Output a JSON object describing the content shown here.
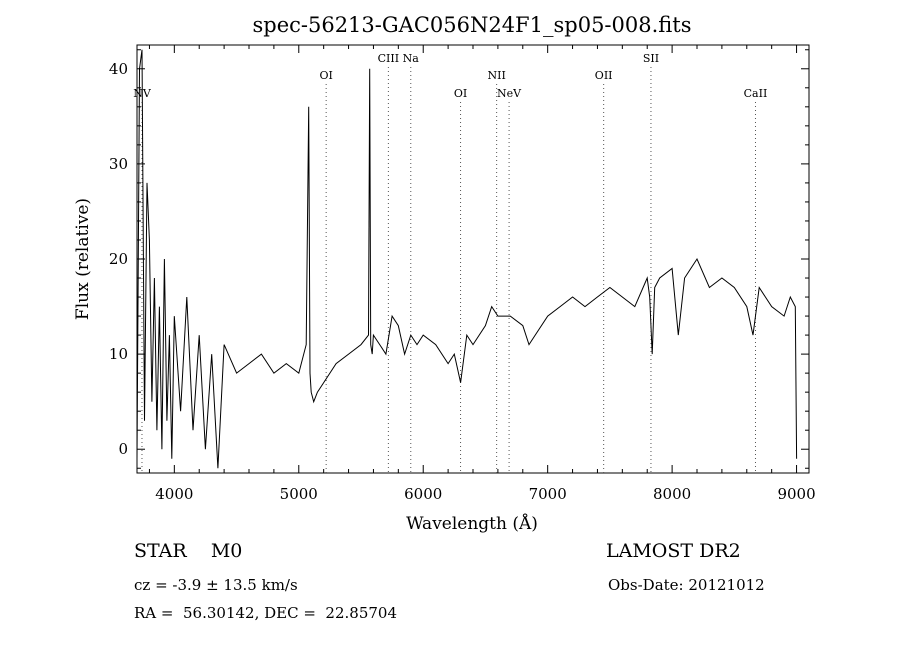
{
  "chart_data": {
    "type": "line",
    "title": "spec-56213-GAC056N24F1_sp05-008.fits",
    "xlabel": "Wavelength (Å)",
    "ylabel": "Flux (relative)",
    "xlim": [
      3700,
      9100
    ],
    "ylim": [
      -2.5,
      42.5
    ],
    "xticks": [
      4000,
      5000,
      6000,
      7000,
      8000,
      9000
    ],
    "yticks": [
      0,
      10,
      20,
      30,
      40
    ],
    "grid": false,
    "series": [
      {
        "x": [
          3700,
          3720,
          3740,
          3760,
          3780,
          3800,
          3820,
          3840,
          3860,
          3880,
          3900,
          3920,
          3940,
          3960,
          3980,
          4000,
          4050,
          4100,
          4150,
          4200,
          4250,
          4300,
          4350,
          4400,
          4500,
          4600,
          4700,
          4800,
          4900,
          5000,
          5060,
          5080,
          5090,
          5100,
          5120,
          5150,
          5200,
          5250,
          5300,
          5400,
          5500,
          5560,
          5570,
          5578,
          5590,
          5600,
          5650,
          5700,
          5750,
          5800,
          5850,
          5900,
          5950,
          6000,
          6100,
          6200,
          6250,
          6300,
          6350,
          6400,
          6500,
          6550,
          6600,
          6700,
          6800,
          6850,
          6900,
          7000,
          7100,
          7200,
          7300,
          7400,
          7500,
          7600,
          7700,
          7800,
          7820,
          7840,
          7860,
          7900,
          8000,
          8050,
          8100,
          8150,
          8200,
          8300,
          8400,
          8500,
          8600,
          8650,
          8700,
          8750,
          8800,
          8900,
          8950,
          8990,
          9000
        ],
        "y": [
          -1,
          40,
          42,
          3,
          28,
          22,
          5,
          18,
          2,
          15,
          0,
          20,
          3,
          12,
          -1,
          14,
          4,
          16,
          2,
          12,
          0,
          10,
          -2,
          11,
          8,
          9,
          10,
          8,
          9,
          8,
          11,
          36,
          8,
          6,
          5,
          6,
          7,
          8,
          9,
          10,
          11,
          12,
          40,
          11,
          10,
          12,
          11,
          10,
          14,
          13,
          10,
          12,
          11,
          12,
          11,
          9,
          10,
          7,
          12,
          11,
          13,
          15,
          14,
          14,
          13,
          11,
          12,
          14,
          15,
          16,
          15,
          16,
          17,
          16,
          15,
          18,
          16,
          10,
          17,
          18,
          19,
          12,
          18,
          19,
          20,
          17,
          18,
          17,
          15,
          12,
          17,
          16,
          15,
          14,
          16,
          15,
          -1
        ]
      }
    ],
    "lines": [
      {
        "label": "NV",
        "x": 3740,
        "row": 2
      },
      {
        "label": "OI",
        "x": 5220,
        "row": 1
      },
      {
        "label": "CIII",
        "x": 5720,
        "row": 0
      },
      {
        "label": "Na",
        "x": 5900,
        "row": 0
      },
      {
        "label": "OI",
        "x": 6300,
        "row": 2
      },
      {
        "label": "NII",
        "x": 6590,
        "row": 1
      },
      {
        "label": "NeV",
        "x": 6690,
        "row": 2
      },
      {
        "label": "OII",
        "x": 7450,
        "row": 1
      },
      {
        "label": "SII",
        "x": 7830,
        "row": 0
      },
      {
        "label": "CaII",
        "x": 8670,
        "row": 2
      }
    ]
  },
  "info": {
    "object_class": "STAR    M0",
    "survey": "LAMOST DR2",
    "cz": "cz = -3.9 ± 13.5 km/s",
    "obs_date": "Obs-Date: 20121012",
    "coords": "RA =  56.30142, DEC =  22.85704"
  }
}
